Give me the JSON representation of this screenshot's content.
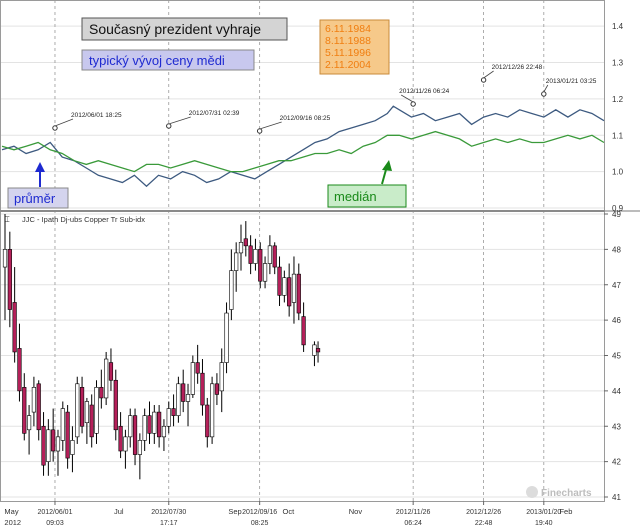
{
  "colors": {
    "typical_line": "#3d5a80",
    "median_line": "#3a9a3a",
    "bull": "#ffffff",
    "bear": "#b5205a",
    "wick": "#000000",
    "grid": "#e3e3e3",
    "vline": "#999999",
    "title_box_fill": "#d4d4d4",
    "typical_box_fill": "#c8c8ee",
    "typical_text": "#1e2ad0",
    "dates_box_fill": "#f6c98a",
    "dates_text": "#f07e10",
    "prumer_text": "#1e2ad0",
    "median_box_fill": "#c9ecc9",
    "median_text": "#1a8a1a"
  },
  "top_panel": {
    "title": "Současný prezident vyhraje",
    "typical_label": "typický vývoj ceny mědi",
    "election_dates": [
      "6.11.1984",
      "8.11.1988",
      "5.11.1996",
      "2.11.2004"
    ],
    "prumer_label": "průměr",
    "median_label": "medián",
    "y_ticks": [
      "1.4",
      "1.3",
      "1.2",
      "1.1",
      "1.0",
      "0.9"
    ]
  },
  "bottom_panel": {
    "legend": "JJC - Ipath Dj-ubs Copper Tr Sub-idx",
    "y_ticks": [
      "49",
      "48",
      "47",
      "46",
      "45",
      "44",
      "43",
      "42",
      "41"
    ]
  },
  "x_axis": {
    "month_labels": [
      "May 2012",
      "Jul",
      "Sep",
      "Oct",
      "Nov",
      "Feb"
    ],
    "event_labels": [
      [
        "2012/06/01",
        "09:03"
      ],
      [
        "2012/07/30",
        "17:17"
      ],
      [
        "2012/09/16",
        "08:25"
      ],
      [
        "2012/11/26",
        "06:24"
      ],
      [
        "2012/12/26",
        "22:48"
      ],
      [
        "2013/01/20",
        "19:40"
      ]
    ]
  },
  "annotations": [
    "2012/06/01 18:25",
    "2012/07/31 02:39",
    "2012/09/16 08:25",
    "2012/11/26 06:24",
    "2012/12/26 22:48",
    "2013/01/21 03:25"
  ],
  "watermark": "Finecharts",
  "chart_data": [
    {
      "type": "line",
      "title": "",
      "ylim": [
        0.9,
        1.45
      ],
      "x_range": [
        0,
        100
      ],
      "series": [
        {
          "name": "typický vývoj ceny mědi",
          "color_key": "typical_line",
          "x": [
            0,
            2,
            4,
            6,
            8,
            10,
            12,
            14,
            16,
            18,
            20,
            22,
            24,
            26,
            28,
            30,
            32,
            34,
            36,
            38,
            40,
            42,
            44,
            46,
            48,
            50,
            52,
            54,
            56,
            58,
            60,
            62,
            64,
            65,
            66,
            68,
            70,
            72,
            74,
            76,
            78,
            80,
            82,
            84,
            86,
            88,
            90,
            92,
            94,
            96,
            98,
            100
          ],
          "y": [
            1.06,
            1.07,
            1.05,
            1.06,
            1.08,
            1.04,
            1.03,
            1.01,
            0.99,
            0.98,
            0.97,
            0.99,
            0.96,
            0.99,
            0.98,
            1.0,
            0.99,
            0.97,
            0.98,
            1.0,
            0.99,
            0.98,
            1.0,
            1.02,
            1.04,
            1.06,
            1.08,
            1.09,
            1.11,
            1.12,
            1.13,
            1.14,
            1.16,
            1.18,
            1.17,
            1.15,
            1.16,
            1.14,
            1.15,
            1.16,
            1.13,
            1.15,
            1.16,
            1.15,
            1.17,
            1.16,
            1.15,
            1.17,
            1.15,
            1.17,
            1.16,
            1.14
          ]
        },
        {
          "name": "medián",
          "color_key": "median_line",
          "x": [
            0,
            2,
            4,
            6,
            8,
            10,
            12,
            14,
            16,
            18,
            20,
            22,
            24,
            26,
            28,
            30,
            32,
            34,
            36,
            38,
            40,
            42,
            44,
            46,
            48,
            50,
            52,
            54,
            56,
            58,
            60,
            62,
            64,
            66,
            68,
            70,
            72,
            74,
            76,
            78,
            80,
            82,
            84,
            86,
            88,
            90,
            92,
            94,
            96,
            98,
            100
          ],
          "y": [
            1.07,
            1.06,
            1.07,
            1.08,
            1.06,
            1.05,
            1.03,
            1.02,
            1.03,
            1.02,
            1.01,
            1.0,
            1.02,
            1.02,
            1.01,
            1.02,
            1.03,
            1.02,
            1.01,
            1.0,
            1.0,
            1.01,
            1.02,
            1.03,
            1.03,
            1.04,
            1.05,
            1.05,
            1.06,
            1.05,
            1.07,
            1.08,
            1.1,
            1.1,
            1.09,
            1.1,
            1.11,
            1.1,
            1.09,
            1.07,
            1.08,
            1.09,
            1.08,
            1.09,
            1.08,
            1.08,
            1.09,
            1.1,
            1.09,
            1.1,
            1.08
          ]
        }
      ]
    },
    {
      "type": "candlestick",
      "title": "JJC - Ipath Dj-ubs Copper Tr Sub-idx",
      "ylim": [
        41,
        49
      ],
      "x_range": [
        0,
        100
      ],
      "candles": [
        [
          0.5,
          47.5,
          49.0,
          46.0,
          48.0
        ],
        [
          1.3,
          48.0,
          48.5,
          45.8,
          46.3
        ],
        [
          2.1,
          46.5,
          47.5,
          44.8,
          45.1
        ],
        [
          2.9,
          45.2,
          45.9,
          43.7,
          44.0
        ],
        [
          3.7,
          44.1,
          44.5,
          42.6,
          42.8
        ],
        [
          4.5,
          42.9,
          43.6,
          42.2,
          43.3
        ],
        [
          5.3,
          43.4,
          44.4,
          43.0,
          44.1
        ],
        [
          6.1,
          44.2,
          44.3,
          42.6,
          42.9
        ],
        [
          6.9,
          43.0,
          43.4,
          41.6,
          41.9
        ],
        [
          7.7,
          42.0,
          43.2,
          41.6,
          42.9
        ],
        [
          8.5,
          42.9,
          43.5,
          42.0,
          42.3
        ],
        [
          9.3,
          42.3,
          42.9,
          41.6,
          42.7
        ],
        [
          10.1,
          42.6,
          43.7,
          42.3,
          43.5
        ],
        [
          10.9,
          43.4,
          43.6,
          41.8,
          42.1
        ],
        [
          11.7,
          42.2,
          43.0,
          41.7,
          42.6
        ],
        [
          12.5,
          42.7,
          44.4,
          42.5,
          44.2
        ],
        [
          13.3,
          44.1,
          44.4,
          42.8,
          43.0
        ],
        [
          14.1,
          43.1,
          43.8,
          42.5,
          43.7
        ],
        [
          14.9,
          43.6,
          43.9,
          42.4,
          42.7
        ],
        [
          15.7,
          42.8,
          44.3,
          42.5,
          44.1
        ],
        [
          16.5,
          44.1,
          44.6,
          43.5,
          43.8
        ],
        [
          17.3,
          43.8,
          45.1,
          43.6,
          44.9
        ],
        [
          18.1,
          44.8,
          45.2,
          44.0,
          44.3
        ],
        [
          18.9,
          44.3,
          44.6,
          42.6,
          42.9
        ],
        [
          19.7,
          43.0,
          43.4,
          42.1,
          42.3
        ],
        [
          20.5,
          42.3,
          42.9,
          41.8,
          42.7
        ],
        [
          21.3,
          42.7,
          43.5,
          42.4,
          43.3
        ],
        [
          22.1,
          43.3,
          43.5,
          41.9,
          42.2
        ],
        [
          22.9,
          42.2,
          42.8,
          41.5,
          42.6
        ],
        [
          23.7,
          42.6,
          43.5,
          42.3,
          43.3
        ],
        [
          24.5,
          43.3,
          43.7,
          42.5,
          42.8
        ],
        [
          25.3,
          42.8,
          43.6,
          42.5,
          43.4
        ],
        [
          26.1,
          43.4,
          43.6,
          42.4,
          42.7
        ],
        [
          26.9,
          42.7,
          43.2,
          42.3,
          43.0
        ],
        [
          27.7,
          43.0,
          43.7,
          42.8,
          43.5
        ],
        [
          28.5,
          43.5,
          43.9,
          43.0,
          43.3
        ],
        [
          29.3,
          43.3,
          44.4,
          43.1,
          44.2
        ],
        [
          30.1,
          44.2,
          44.6,
          43.4,
          43.7
        ],
        [
          30.9,
          43.7,
          44.2,
          43.0,
          43.9
        ],
        [
          31.7,
          43.9,
          45.0,
          43.8,
          44.8
        ],
        [
          32.5,
          44.8,
          45.3,
          44.2,
          44.5
        ],
        [
          33.3,
          44.5,
          44.9,
          43.3,
          43.6
        ],
        [
          34.1,
          43.6,
          43.8,
          42.4,
          42.7
        ],
        [
          34.9,
          42.7,
          44.4,
          42.5,
          44.2
        ],
        [
          35.7,
          44.2,
          44.5,
          43.6,
          43.9
        ],
        [
          36.5,
          44.0,
          45.2,
          43.4,
          44.8
        ],
        [
          37.3,
          44.8,
          46.5,
          44.5,
          46.2
        ],
        [
          38.1,
          46.3,
          48.0,
          46.0,
          47.4
        ],
        [
          38.9,
          47.4,
          48.2,
          46.8,
          47.9
        ],
        [
          39.7,
          47.9,
          48.7,
          47.4,
          48.2
        ],
        [
          40.5,
          48.3,
          48.8,
          47.8,
          48.1
        ],
        [
          41.3,
          48.1,
          48.4,
          47.3,
          47.6
        ],
        [
          42.1,
          47.6,
          48.3,
          47.4,
          48.0
        ],
        [
          42.9,
          48.0,
          48.2,
          46.9,
          47.1
        ],
        [
          43.7,
          47.1,
          47.8,
          46.9,
          47.6
        ],
        [
          44.5,
          47.6,
          48.4,
          47.3,
          48.1
        ],
        [
          45.3,
          48.1,
          48.2,
          47.3,
          47.5
        ],
        [
          46.1,
          47.5,
          47.8,
          46.4,
          46.7
        ],
        [
          46.9,
          46.7,
          47.4,
          46.5,
          47.2
        ],
        [
          47.7,
          47.2,
          47.6,
          46.1,
          46.4
        ],
        [
          48.5,
          46.5,
          47.8,
          45.9,
          47.3
        ],
        [
          49.3,
          47.3,
          47.6,
          46.0,
          46.2
        ],
        [
          50.1,
          46.1,
          46.5,
          45.1,
          45.3
        ],
        [
          51.9,
          45.0,
          45.4,
          44.7,
          45.3
        ],
        [
          52.5,
          45.2,
          45.4,
          44.8,
          45.1
        ]
      ]
    }
  ]
}
